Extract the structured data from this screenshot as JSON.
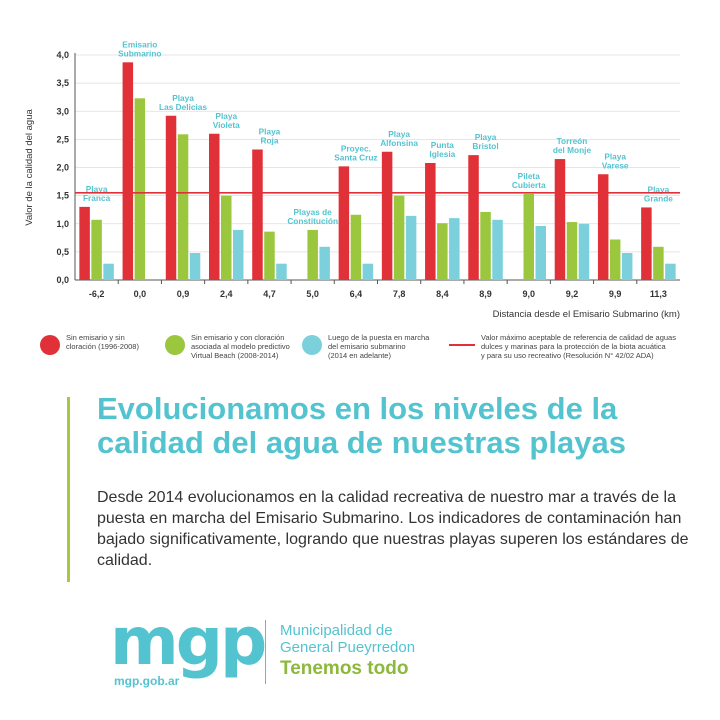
{
  "chart_data": {
    "type": "bar",
    "ylabel": "Valor de la calidad del agua",
    "xlabel": "Distancia desde el Emisario Submarino (km)",
    "ylim": [
      0,
      4.0
    ],
    "yticks": [
      "0,0",
      "0,5",
      "1,0",
      "1,5",
      "2,0",
      "2,5",
      "3,0",
      "3,5",
      "4,0"
    ],
    "grid": true,
    "categories": [
      "-6,2",
      "0,0",
      "0,9",
      "2,4",
      "4,7",
      "5,0",
      "6,4",
      "7,8",
      "8,4",
      "8,9",
      "9,0",
      "9,2",
      "9,9",
      "11,3"
    ],
    "location_labels": [
      "Playa\nFranca",
      "Emisario\nSubmarino",
      "Playa\nLas Delicias",
      "Playa\nVioleta",
      "Playa\nRoja",
      "Playas de\nConstitución",
      "Proyec.\nSanta Cruz",
      "Playa\nAlfonsina",
      "Punta\nIglesia",
      "Playa\nBristol",
      "Pileta\nCubierta",
      "Torreón\ndel Monje",
      "Playa\nVarese",
      "Playa\nGrande"
    ],
    "series": [
      {
        "name": "Sin emisario y sin cloración (1996-2008)",
        "color": "#e03038",
        "values": [
          1.3,
          3.87,
          2.92,
          2.6,
          2.32,
          null,
          2.02,
          2.28,
          2.08,
          2.22,
          null,
          2.15,
          1.88,
          1.29
        ]
      },
      {
        "name": "Sin emisario y con cloración asociada al modelo predictivo Virtual Beach (2008-2014)",
        "color": "#9ac73e",
        "values": [
          1.07,
          3.23,
          2.59,
          1.5,
          0.86,
          0.89,
          1.16,
          1.5,
          1.01,
          1.21,
          1.53,
          1.03,
          0.72,
          0.59
        ]
      },
      {
        "name": "Luego de la puesta en marcha del emisario submarino (2014 en adelante)",
        "color": "#7cd0dc",
        "values": [
          0.29,
          null,
          0.48,
          0.89,
          0.29,
          0.59,
          0.29,
          1.14,
          1.1,
          1.07,
          0.96,
          1.0,
          0.48,
          0.29
        ]
      }
    ],
    "reference_line": {
      "value": 1.55,
      "color": "#e03038",
      "label": "Valor máximo aceptable de referencia de calidad de aguas dulces y marinas para la protección de la biota acuática y para su uso recreativo (Resolución N° 42/02 ADA)"
    }
  },
  "legend": {
    "items": [
      {
        "text": "Sin emisario y sin\ncloración (1996-2008)",
        "color": "#e03038"
      },
      {
        "text": "Sin emisario y con cloración\nasociada al modelo predictivo\nVirtual Beach (2008-2014)",
        "color": "#9ac73e"
      },
      {
        "text": "Luego de la puesta en marcha\ndel emisario submarino\n(2014 en adelante)",
        "color": "#7cd0dc"
      },
      {
        "text": "Valor máximo aceptable de referencia de calidad de aguas\ndulces y marinas para la protección de la biota acuática\ny para su uso recreativo (Resolución N° 42/02 ADA)",
        "color": "#e03038"
      }
    ]
  },
  "headline": "Evolucionamos en los niveles de la calidad del agua de nuestras playas",
  "body": "Desde 2014 evolucionamos en la calidad recreativa de nuestro mar a través de la puesta en marcha del Emisario Submarino. Los indicadores de contaminación han bajado significativamente, logrando que nuestras playas superen los estándares de calidad.",
  "footer": {
    "logo_text": "mgp",
    "url": "mgp.gob.ar",
    "org_name": "Municipalidad de\nGeneral Pueyrredon",
    "slogan": "Tenemos todo"
  },
  "colors": {
    "accent_teal": "#54c3d0",
    "accent_green": "#8cb83b"
  }
}
